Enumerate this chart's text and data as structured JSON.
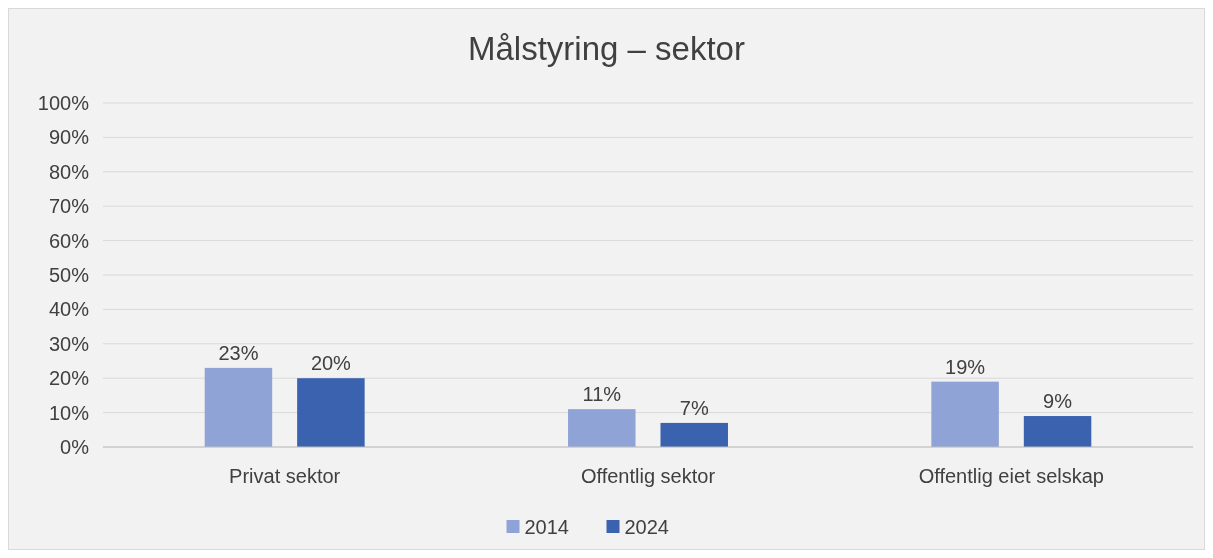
{
  "chart_data": {
    "type": "bar",
    "title": "Målstyring – sektor",
    "categories": [
      "Privat sektor",
      "Offentlig sektor",
      "Offentlig eiet selskap"
    ],
    "series": [
      {
        "name": "2014",
        "color": "#8fa3d6",
        "values": [
          23,
          11,
          19
        ],
        "value_labels": [
          "23%",
          "11%",
          "19%"
        ]
      },
      {
        "name": "2024",
        "color": "#3a62ae",
        "values": [
          20,
          7,
          9
        ],
        "value_labels": [
          "20%",
          "7%",
          "9%"
        ]
      }
    ],
    "ylim": [
      0,
      100
    ],
    "yticks": [
      {
        "value": 0,
        "label": "0%"
      },
      {
        "value": 10,
        "label": "10%"
      },
      {
        "value": 20,
        "label": "20%"
      },
      {
        "value": 30,
        "label": "30%"
      },
      {
        "value": 40,
        "label": "40%"
      },
      {
        "value": 50,
        "label": "50%"
      },
      {
        "value": 60,
        "label": "60%"
      },
      {
        "value": 70,
        "label": "70%"
      },
      {
        "value": 80,
        "label": "80%"
      },
      {
        "value": 90,
        "label": "90%"
      },
      {
        "value": 100,
        "label": "100%"
      }
    ],
    "grid": "y",
    "legend": "bottom"
  }
}
